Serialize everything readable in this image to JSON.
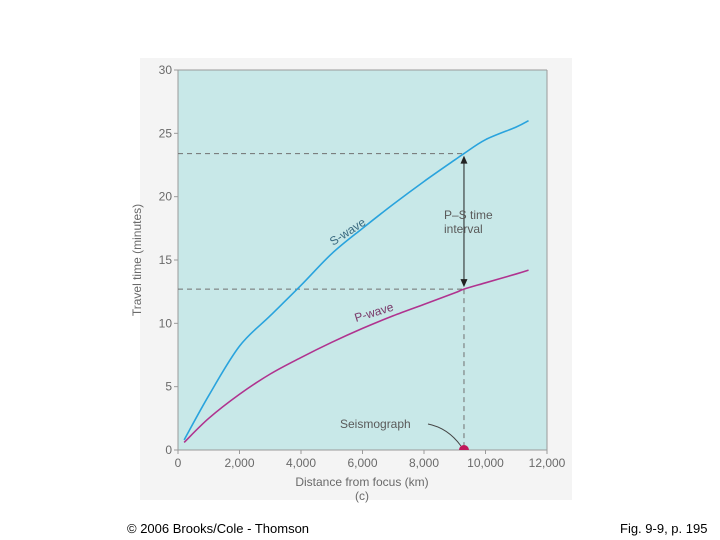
{
  "chart_data": {
    "type": "line",
    "title": "",
    "xlabel": "Distance from focus (km)",
    "xlabel_sub": "(c)",
    "ylabel": "Travel time (minutes)",
    "xlim": [
      0,
      12000
    ],
    "ylim": [
      0,
      30
    ],
    "x_ticks": [
      "0",
      "2,000",
      "4,000",
      "6,000",
      "8,000",
      "10,000",
      "12,000"
    ],
    "y_ticks": [
      "0",
      "5",
      "10",
      "15",
      "20",
      "25",
      "30"
    ],
    "grid": false,
    "series": [
      {
        "name": "S-wave",
        "color": "#29a3dd",
        "x": [
          200,
          1000,
          2000,
          3000,
          4000,
          5000,
          6000,
          7000,
          8000,
          9000,
          9300,
          10000,
          11000,
          11400
        ],
        "y": [
          0.8,
          4.3,
          8.2,
          10.6,
          13.0,
          15.5,
          17.5,
          19.4,
          21.2,
          22.9,
          23.4,
          24.5,
          25.5,
          26.0
        ]
      },
      {
        "name": "P-wave",
        "color": "#b0338f",
        "x": [
          200,
          1000,
          2000,
          3000,
          4000,
          5000,
          6000,
          7000,
          8000,
          9000,
          9300,
          10000,
          11000,
          11400
        ],
        "y": [
          0.6,
          2.5,
          4.4,
          6.0,
          7.3,
          8.5,
          9.6,
          10.6,
          11.5,
          12.4,
          12.7,
          13.2,
          13.9,
          14.2
        ]
      }
    ],
    "annotations": {
      "interval_label_1": "P–S time",
      "interval_label_2": "interval",
      "station_label": "Seismograph",
      "station_x": 9300,
      "station_y": 0,
      "s_arrival": 23.4,
      "p_arrival": 12.7,
      "station_color": "#c0185a"
    },
    "colors": {
      "plot_background": "#c8e8e8",
      "axis": "#9a9a9a",
      "dashed": "#707070"
    }
  },
  "footer": {
    "copyright": "© 2006 Brooks/Cole - Thomson",
    "figure_ref": "Fig. 9-9, p. 195"
  }
}
